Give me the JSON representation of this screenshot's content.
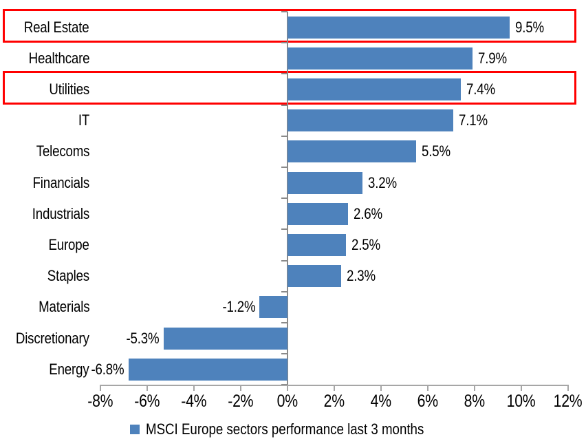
{
  "chart_data": {
    "type": "bar",
    "orientation": "horizontal",
    "title": "",
    "categories": [
      "Real Estate",
      "Healthcare",
      "Utilities",
      "IT",
      "Telecoms",
      "Financials",
      "Industrials",
      "Europe",
      "Staples",
      "Materials",
      "Discretionary",
      "Energy"
    ],
    "values": [
      9.5,
      7.9,
      7.4,
      7.1,
      5.5,
      3.2,
      2.6,
      2.5,
      2.3,
      -1.2,
      -5.3,
      -6.8
    ],
    "value_labels": [
      "9.5%",
      "7.9%",
      "7.4%",
      "7.1%",
      "5.5%",
      "3.2%",
      "2.6%",
      "2.5%",
      "2.3%",
      "-1.2%",
      "-5.3%",
      "-6.8%"
    ],
    "highlighted_categories": [
      "Real Estate",
      "Utilities"
    ],
    "x_axis": {
      "min": -8,
      "max": 12,
      "ticks": [
        -8,
        -6,
        -4,
        -2,
        0,
        2,
        4,
        6,
        8,
        10,
        12
      ],
      "tick_labels": [
        "-8%",
        "-6%",
        "-4%",
        "-2%",
        "0%",
        "2%",
        "4%",
        "6%",
        "8%",
        "10%",
        "12%"
      ]
    },
    "legend": {
      "label": "MSCI Europe sectors performance last 3 months"
    },
    "grid": false,
    "legend_position": "bottom",
    "colors": {
      "bar": "#4E82BC",
      "highlight_box": "#FF0000",
      "vertical_axis": "#8A8A8A",
      "horizontal_axis": "#A6A6A6",
      "text": "#000000"
    }
  }
}
